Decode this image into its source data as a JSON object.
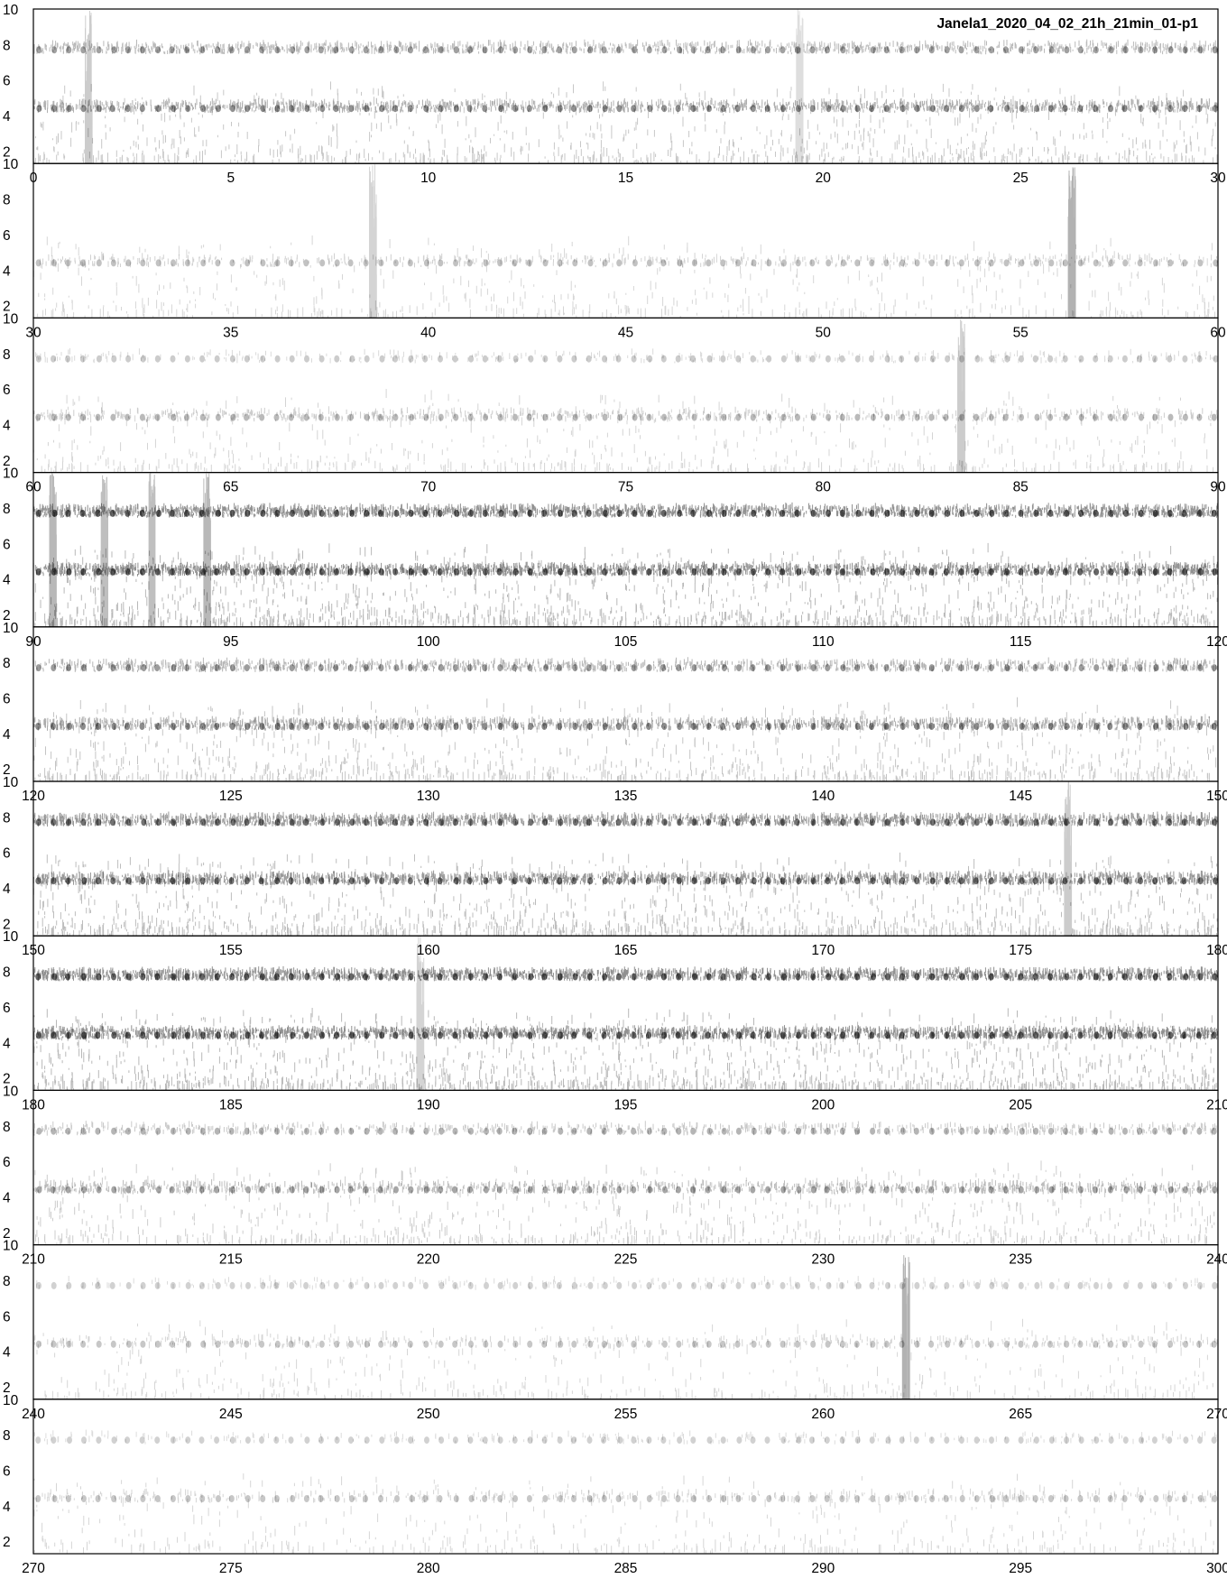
{
  "chart_data": {
    "type": "spectrogram",
    "title": "Janela1_2020_04_02_21h_21min_01-p1",
    "xlabel": "",
    "ylabel": "",
    "colormap": "grayscale (dark = high energy)",
    "grid": false,
    "background": "#ffffff",
    "ink_color": "#000000",
    "y_ticks": [
      2,
      4,
      6,
      8,
      10
    ],
    "ylim": [
      1.3,
      10
    ],
    "panels": [
      {
        "xlim": [
          0,
          30
        ],
        "x_ticks": [
          0,
          5,
          10,
          15,
          20,
          25,
          30
        ],
        "intensity": 0.55,
        "bands": [
          {
            "y": 7.7,
            "strength": 0.8
          },
          {
            "y": 4.4,
            "strength": 1.0
          }
        ],
        "events": [
          {
            "x": 1.4,
            "strength": 0.6
          },
          {
            "x": 19.4,
            "strength": 0.3
          }
        ]
      },
      {
        "xlim": [
          30,
          60
        ],
        "x_ticks": [
          30,
          35,
          40,
          45,
          50,
          55,
          60
        ],
        "intensity": 0.25,
        "bands": [
          {
            "y": 4.4,
            "strength": 0.7
          }
        ],
        "events": [
          {
            "x": 38.6,
            "strength": 0.5
          },
          {
            "x": 56.3,
            "strength": 1.0
          }
        ]
      },
      {
        "xlim": [
          60,
          90
        ],
        "x_ticks": [
          60,
          65,
          70,
          75,
          80,
          85,
          90
        ],
        "intensity": 0.3,
        "bands": [
          {
            "y": 7.7,
            "strength": 0.3
          },
          {
            "y": 4.4,
            "strength": 0.8
          }
        ],
        "events": [
          {
            "x": 83.5,
            "strength": 0.6
          }
        ]
      },
      {
        "xlim": [
          90,
          120
        ],
        "x_ticks": [
          90,
          95,
          100,
          105,
          110,
          115,
          120
        ],
        "intensity": 0.9,
        "bands": [
          {
            "y": 7.7,
            "strength": 1.0
          },
          {
            "y": 4.4,
            "strength": 1.0
          }
        ],
        "events": [
          {
            "x": 90.5,
            "strength": 0.9
          },
          {
            "x": 91.8,
            "strength": 0.8
          },
          {
            "x": 93.0,
            "strength": 0.8
          },
          {
            "x": 94.4,
            "strength": 0.9
          }
        ]
      },
      {
        "xlim": [
          120,
          150
        ],
        "x_ticks": [
          120,
          125,
          130,
          135,
          140,
          145,
          150
        ],
        "intensity": 0.6,
        "bands": [
          {
            "y": 7.7,
            "strength": 0.8
          },
          {
            "y": 4.4,
            "strength": 1.0
          }
        ],
        "events": []
      },
      {
        "xlim": [
          150,
          180
        ],
        "x_ticks": [
          150,
          155,
          160,
          165,
          170,
          175,
          180
        ],
        "intensity": 0.8,
        "bands": [
          {
            "y": 7.7,
            "strength": 1.0
          },
          {
            "y": 4.4,
            "strength": 1.0
          }
        ],
        "events": [
          {
            "x": 176.2,
            "strength": 0.6
          }
        ]
      },
      {
        "xlim": [
          180,
          210
        ],
        "x_ticks": [
          180,
          185,
          190,
          195,
          200,
          205,
          210
        ],
        "intensity": 0.9,
        "bands": [
          {
            "y": 7.7,
            "strength": 1.0
          },
          {
            "y": 4.4,
            "strength": 1.0
          }
        ],
        "events": [
          {
            "x": 189.8,
            "strength": 0.5
          }
        ]
      },
      {
        "xlim": [
          210,
          240
        ],
        "x_ticks": [
          210,
          215,
          220,
          225,
          230,
          235,
          240
        ],
        "intensity": 0.45,
        "bands": [
          {
            "y": 7.7,
            "strength": 0.6
          },
          {
            "y": 4.4,
            "strength": 0.9
          }
        ],
        "events": []
      },
      {
        "xlim": [
          240,
          270
        ],
        "x_ticks": [
          240,
          245,
          250,
          255,
          260,
          265,
          270
        ],
        "intensity": 0.2,
        "bands": [
          {
            "y": 7.7,
            "strength": 0.3
          },
          {
            "y": 4.4,
            "strength": 0.7
          }
        ],
        "events": [
          {
            "x": 262.1,
            "strength": 1.0
          }
        ]
      },
      {
        "xlim": [
          270,
          300
        ],
        "x_ticks": [
          270,
          275,
          280,
          285,
          290,
          295,
          300
        ],
        "intensity": 0.2,
        "bands": [
          {
            "y": 7.7,
            "strength": 0.3
          },
          {
            "y": 4.4,
            "strength": 0.7
          }
        ],
        "events": []
      }
    ]
  }
}
